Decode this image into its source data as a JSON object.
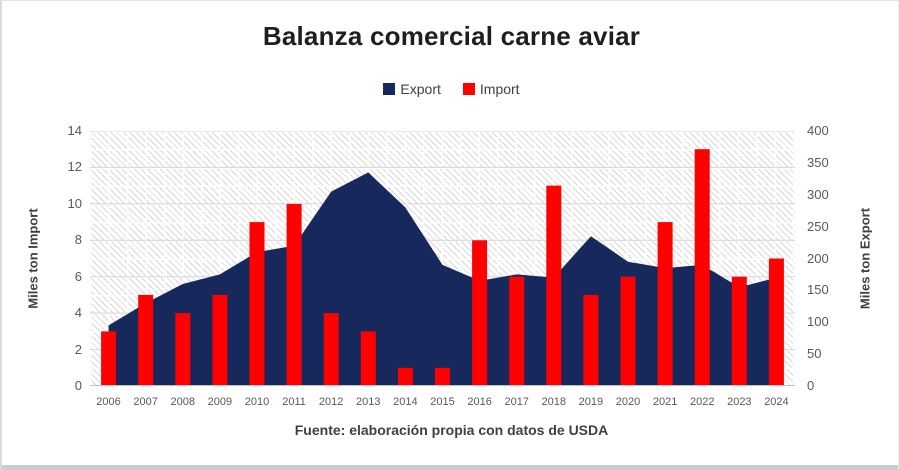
{
  "title": "Balanza comercial carne aviar",
  "footer": "Fuente: elaboración propia con datos de USDA",
  "legend": {
    "items": [
      {
        "label": "Export",
        "color": "#17285C"
      },
      {
        "label": "Import",
        "color": "#FE0000"
      }
    ]
  },
  "colors": {
    "export_area": "#17285C",
    "import_bar": "#FE0000",
    "tick_text": "#595959",
    "axis_title_text": "#404040",
    "gridline": "#d4d4d4",
    "baseline": "#bfbfbf"
  },
  "chart_data": {
    "type": "combo",
    "categories": [
      "2006",
      "2007",
      "2008",
      "2009",
      "2010",
      "2011",
      "2012",
      "2013",
      "2014",
      "2015",
      "2016",
      "2017",
      "2018",
      "2019",
      "2020",
      "2021",
      "2022",
      "2023",
      "2024"
    ],
    "series": [
      {
        "name": "Export",
        "type": "area",
        "axis": "right",
        "color": "#17285C",
        "values": [
          95,
          130,
          160,
          175,
          210,
          220,
          305,
          335,
          280,
          190,
          165,
          175,
          170,
          235,
          195,
          185,
          190,
          155,
          170
        ]
      },
      {
        "name": "Import",
        "type": "bar",
        "axis": "left",
        "color": "#FE0000",
        "values": [
          3,
          5,
          4,
          5,
          9,
          10,
          4,
          3,
          1,
          1,
          8,
          6,
          11,
          5,
          6,
          9,
          13,
          6,
          7
        ]
      }
    ],
    "left_axis": {
      "title": "Miles ton Import",
      "min": 0,
      "max": 14,
      "step": 2,
      "ticks": [
        0,
        2,
        4,
        6,
        8,
        10,
        12,
        14
      ]
    },
    "right_axis": {
      "title": "Miles ton Export",
      "min": 0,
      "max": 400,
      "step": 50,
      "ticks": [
        0,
        50,
        100,
        150,
        200,
        250,
        300,
        350,
        400
      ]
    },
    "grid": true,
    "legend_position": "top",
    "plot_background": "diagonal-hatch"
  }
}
